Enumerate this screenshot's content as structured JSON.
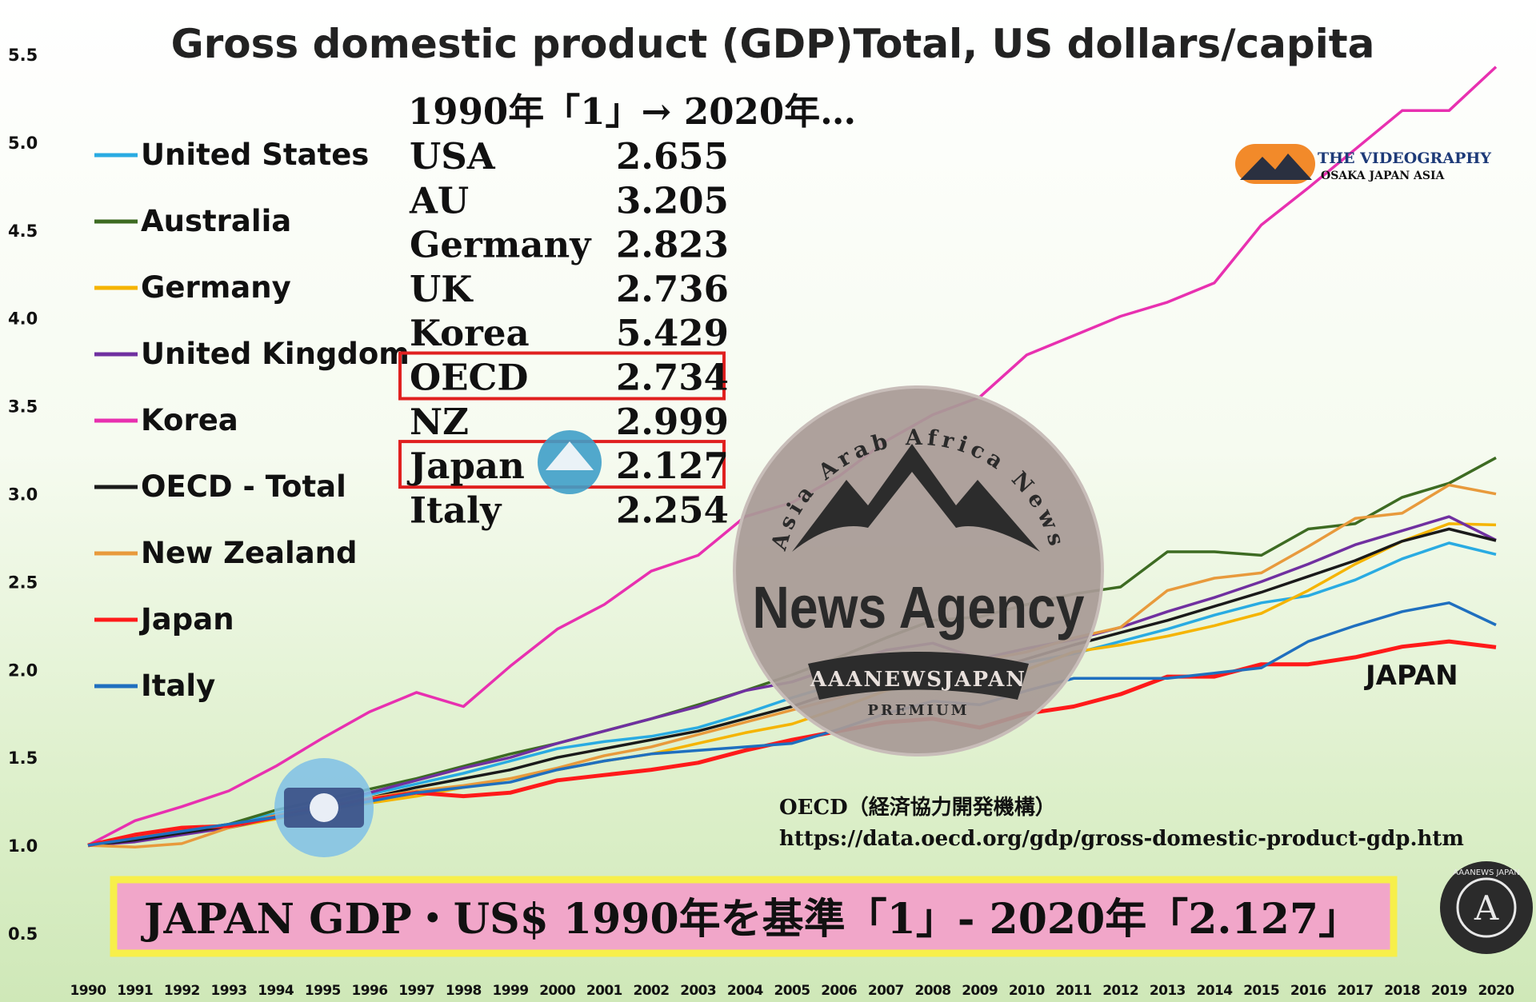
{
  "chart_data": {
    "type": "line",
    "title": "Gross domestic product (GDP)Total, US dollars/capita",
    "ylim": [
      0.5,
      5.5
    ],
    "yticks": [
      "5.5",
      "5.0",
      "4.5",
      "4.0",
      "3.5",
      "3.0",
      "2.5",
      "2.0",
      "1.5",
      "1.0",
      "0.5"
    ],
    "x": [
      "1990",
      "1991",
      "1992",
      "1993",
      "1994",
      "1995",
      "1996",
      "1997",
      "1998",
      "1999",
      "2000",
      "2001",
      "2002",
      "2003",
      "2004",
      "2005",
      "2006",
      "2007",
      "2008",
      "2009",
      "2010",
      "2011",
      "2012",
      "2013",
      "2014",
      "2015",
      "2016",
      "2017",
      "2018",
      "2019",
      "2020"
    ],
    "grid": false,
    "legend_position": "left",
    "series": [
      {
        "name": "United States",
        "color": "#29abe2",
        "values": [
          1.0,
          1.03,
          1.08,
          1.12,
          1.18,
          1.23,
          1.29,
          1.35,
          1.41,
          1.48,
          1.55,
          1.59,
          1.62,
          1.67,
          1.75,
          1.84,
          1.92,
          1.98,
          2.02,
          1.98,
          2.04,
          2.09,
          2.16,
          2.23,
          2.31,
          2.38,
          2.42,
          2.51,
          2.63,
          2.72,
          2.655
        ]
      },
      {
        "name": "Australia",
        "color": "#3d6b22",
        "values": [
          1.0,
          1.04,
          1.08,
          1.12,
          1.2,
          1.26,
          1.32,
          1.38,
          1.45,
          1.52,
          1.58,
          1.65,
          1.72,
          1.8,
          1.88,
          1.97,
          2.07,
          2.18,
          2.28,
          2.3,
          2.37,
          2.43,
          2.47,
          2.67,
          2.67,
          2.65,
          2.8,
          2.83,
          2.98,
          3.06,
          3.205
        ]
      },
      {
        "name": "Germany",
        "color": "#f5b400",
        "values": [
          1.0,
          1.05,
          1.08,
          1.1,
          1.15,
          1.2,
          1.24,
          1.28,
          1.33,
          1.38,
          1.43,
          1.48,
          1.52,
          1.58,
          1.64,
          1.69,
          1.78,
          1.88,
          1.95,
          1.92,
          2.0,
          2.1,
          2.14,
          2.19,
          2.25,
          2.32,
          2.45,
          2.6,
          2.73,
          2.83,
          2.823
        ]
      },
      {
        "name": "United Kingdom",
        "color": "#7030a0",
        "values": [
          1.0,
          1.02,
          1.06,
          1.1,
          1.16,
          1.23,
          1.3,
          1.37,
          1.44,
          1.5,
          1.58,
          1.65,
          1.72,
          1.79,
          1.88,
          1.93,
          2.02,
          2.11,
          2.15,
          2.06,
          2.12,
          2.17,
          2.24,
          2.33,
          2.41,
          2.5,
          2.6,
          2.71,
          2.79,
          2.87,
          2.736
        ]
      },
      {
        "name": "Korea",
        "color": "#e830b0",
        "values": [
          1.0,
          1.14,
          1.22,
          1.31,
          1.45,
          1.61,
          1.76,
          1.87,
          1.79,
          2.02,
          2.23,
          2.37,
          2.56,
          2.65,
          2.87,
          2.95,
          3.1,
          3.3,
          3.45,
          3.55,
          3.79,
          3.9,
          4.01,
          4.09,
          4.2,
          4.53,
          4.74,
          4.96,
          5.18,
          5.18,
          5.429
        ]
      },
      {
        "name": "OECD - Total",
        "color": "#1a1a1a",
        "values": [
          1.0,
          1.03,
          1.07,
          1.11,
          1.16,
          1.21,
          1.27,
          1.33,
          1.38,
          1.43,
          1.5,
          1.55,
          1.6,
          1.65,
          1.72,
          1.79,
          1.88,
          1.97,
          2.02,
          1.98,
          2.06,
          2.14,
          2.21,
          2.28,
          2.36,
          2.44,
          2.53,
          2.62,
          2.73,
          2.8,
          2.734
        ]
      },
      {
        "name": "New Zealand",
        "color": "#e89a3c",
        "values": [
          1.0,
          0.99,
          1.01,
          1.1,
          1.17,
          1.22,
          1.27,
          1.31,
          1.34,
          1.38,
          1.44,
          1.51,
          1.56,
          1.63,
          1.7,
          1.77,
          1.84,
          1.94,
          2.01,
          2.05,
          2.1,
          2.18,
          2.24,
          2.45,
          2.52,
          2.55,
          2.7,
          2.86,
          2.89,
          3.05,
          2.999
        ]
      },
      {
        "name": "Japan",
        "color": "#ff1a1a",
        "values": [
          1.0,
          1.06,
          1.1,
          1.11,
          1.16,
          1.21,
          1.26,
          1.3,
          1.28,
          1.3,
          1.37,
          1.4,
          1.43,
          1.47,
          1.54,
          1.6,
          1.65,
          1.7,
          1.72,
          1.67,
          1.75,
          1.79,
          1.86,
          1.96,
          1.96,
          2.03,
          2.03,
          2.07,
          2.13,
          2.16,
          2.127
        ]
      },
      {
        "name": "Italy",
        "color": "#1f6fbf",
        "values": [
          1.0,
          1.04,
          1.08,
          1.12,
          1.16,
          1.2,
          1.25,
          1.3,
          1.33,
          1.36,
          1.43,
          1.48,
          1.52,
          1.54,
          1.56,
          1.58,
          1.66,
          1.75,
          1.82,
          1.8,
          1.88,
          1.95,
          1.95,
          1.95,
          1.98,
          2.01,
          2.16,
          2.25,
          2.33,
          2.38,
          2.254
        ]
      }
    ]
  },
  "table": {
    "header": "1990年「1」→ 2020年…",
    "rows": [
      {
        "label": "USA",
        "value": "2.655"
      },
      {
        "label": "AU",
        "value": "3.205"
      },
      {
        "label": "Germany",
        "value": "2.823"
      },
      {
        "label": "UK",
        "value": "2.736"
      },
      {
        "label": "Korea",
        "value": "5.429"
      },
      {
        "label": "OECD",
        "value": "2.734",
        "boxed": true
      },
      {
        "label": "NZ",
        "value": "2.999"
      },
      {
        "label": "Japan",
        "value": "2.127",
        "boxed": true
      },
      {
        "label": "Italy",
        "value": "2.254"
      }
    ]
  },
  "annotation": "JAPAN",
  "source": {
    "line1": "OECD（経済協力開発機構）",
    "line2": "https://data.oecd.org/gdp/gross-domestic-product-gdp.htm"
  },
  "banner": "JAPAN GDP・US$ 1990年を基準「1」- 2020年「2.127」",
  "watermark": {
    "arc": "Asia Arab Africa News",
    "name": "News Agency",
    "ribbon": "AAANEWSJAPAN",
    "tag": "PREMIUM"
  },
  "logos": {
    "videography_title": "THE VIDEOGRAPHY",
    "videography_sub": "OSAKA JAPAN ASIA",
    "badge": "AAANEWS JAPAN"
  },
  "colors": {
    "table_box": "#e0201f",
    "banner_fill": "#f1a6c9",
    "banner_border": "#f7ef4a"
  }
}
